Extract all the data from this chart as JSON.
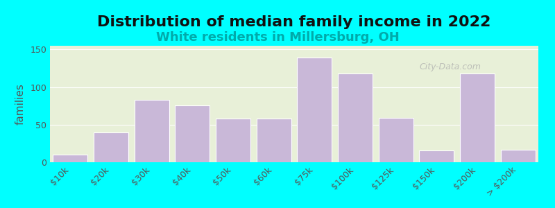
{
  "title": "Distribution of median family income in 2022",
  "subtitle": "White residents in Millersburg, OH",
  "xlabel": "",
  "ylabel": "families",
  "categories": [
    "$10k",
    "$20k",
    "$30k",
    "$40k",
    "$50k",
    "$60k",
    "$75k",
    "$100k",
    "$125k",
    "$150k",
    "$200k",
    "> $200k"
  ],
  "values": [
    10,
    40,
    83,
    76,
    58,
    58,
    139,
    118,
    59,
    16,
    118,
    17
  ],
  "bar_color": "#c9b8d8",
  "bar_edge_color": "#ffffff",
  "bg_color": "#00ffff",
  "plot_bg_colors": [
    "#e8f0d8",
    "#f5f5ff"
  ],
  "ylim": [
    0,
    155
  ],
  "yticks": [
    0,
    50,
    100,
    150
  ],
  "title_fontsize": 16,
  "subtitle_fontsize": 13,
  "ylabel_fontsize": 11,
  "tick_fontsize": 9,
  "watermark_text": "City-Data.com"
}
